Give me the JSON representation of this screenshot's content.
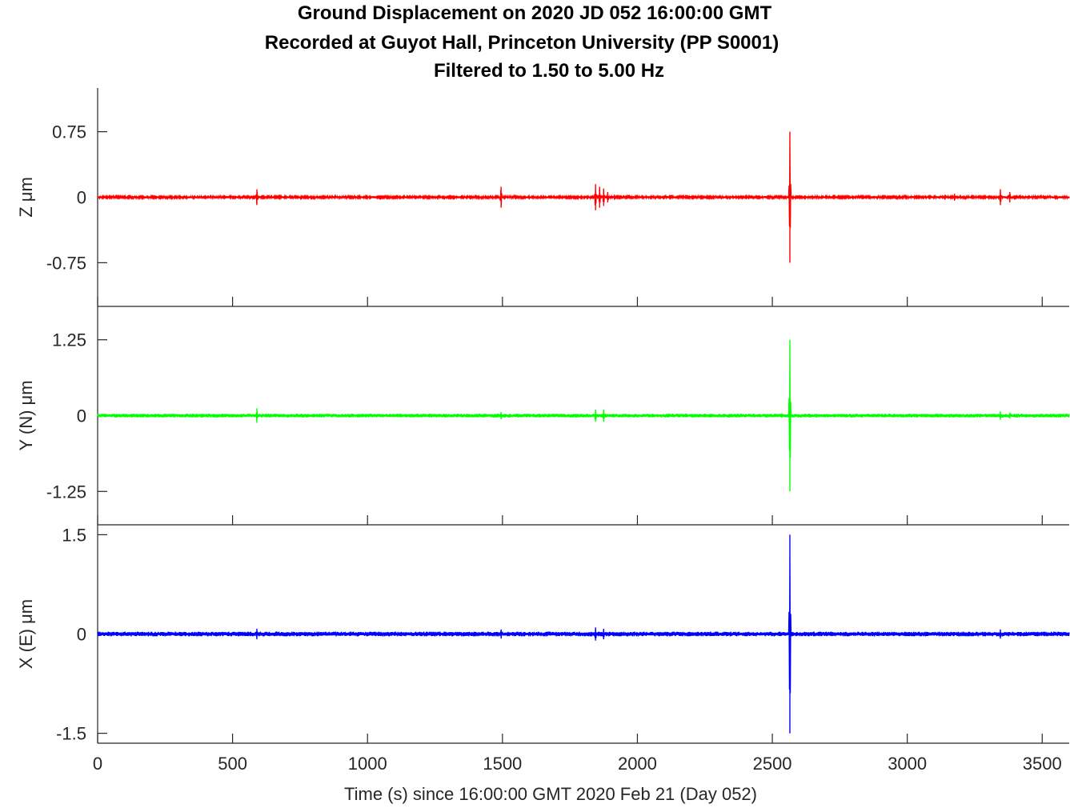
{
  "chart_data": {
    "type": "line",
    "title": [
      "Ground Displacement on 2020 JD 052 16:00:00 GMT",
      "Recorded at Guyot Hall, Princeton University (PP S0001)",
      "Filtered to 1.50 to 5.00 Hz"
    ],
    "xlabel": "Time (s) since 16:00:00 GMT 2020 Feb 21 (Day 052)",
    "xlim": [
      0,
      3600
    ],
    "xticks": [
      0,
      500,
      1000,
      1500,
      2000,
      2500,
      3000,
      3500
    ],
    "xtick_labels": [
      "0",
      "500",
      "1000",
      "1500",
      "2000",
      "2500",
      "3000",
      "3500"
    ],
    "grid": false,
    "panels": [
      {
        "component": "Z",
        "ylabel": "Z  μm",
        "color": "#ff0000",
        "ylim": [
          -1.25,
          1.25
        ],
        "yticks": [
          -0.75,
          0,
          0.75
        ],
        "ytick_labels": [
          "-0.75",
          "0",
          "0.75"
        ],
        "noise_amplitude": 0.012,
        "bursts": [
          {
            "t": 590,
            "amp": 0.09
          },
          {
            "t": 675,
            "amp": 0.03
          },
          {
            "t": 1495,
            "amp": 0.12
          },
          {
            "t": 1845,
            "amp": 0.15
          },
          {
            "t": 1860,
            "amp": 0.12
          },
          {
            "t": 1875,
            "amp": 0.1
          },
          {
            "t": 1890,
            "amp": 0.06
          },
          {
            "t": 1915,
            "amp": 0.03
          },
          {
            "t": 2565,
            "amp": 0.75
          },
          {
            "t": 3140,
            "amp": 0.03
          },
          {
            "t": 3175,
            "amp": 0.04
          },
          {
            "t": 3345,
            "amp": 0.09
          },
          {
            "t": 3380,
            "amp": 0.06
          }
        ]
      },
      {
        "component": "Y (N)",
        "ylabel": "Y (N)  μm",
        "color": "#00ff00",
        "ylim": [
          -1.8,
          1.8
        ],
        "yticks": [
          -1.25,
          0,
          1.25
        ],
        "ytick_labels": [
          "-1.25",
          "0",
          "1.25"
        ],
        "noise_amplitude": 0.03,
        "bursts": [
          {
            "t": 590,
            "amp": 0.12
          },
          {
            "t": 1495,
            "amp": 0.06
          },
          {
            "t": 1845,
            "amp": 0.1
          },
          {
            "t": 1875,
            "amp": 0.1
          },
          {
            "t": 2565,
            "amp": 1.25
          },
          {
            "t": 3345,
            "amp": 0.07
          },
          {
            "t": 3380,
            "amp": 0.05
          }
        ]
      },
      {
        "component": "X (E)",
        "ylabel": "X (E)  μm",
        "color": "#0000ff",
        "ylim": [
          -1.65,
          1.65
        ],
        "yticks": [
          -1.5,
          0,
          1.5
        ],
        "ytick_labels": [
          "-1.5",
          "0",
          "1.5"
        ],
        "noise_amplitude": 0.035,
        "bursts": [
          {
            "t": 590,
            "amp": 0.08
          },
          {
            "t": 1495,
            "amp": 0.07
          },
          {
            "t": 1845,
            "amp": 0.1
          },
          {
            "t": 1875,
            "amp": 0.08
          },
          {
            "t": 2565,
            "amp": 1.5
          },
          {
            "t": 3345,
            "amp": 0.07
          }
        ]
      }
    ]
  }
}
